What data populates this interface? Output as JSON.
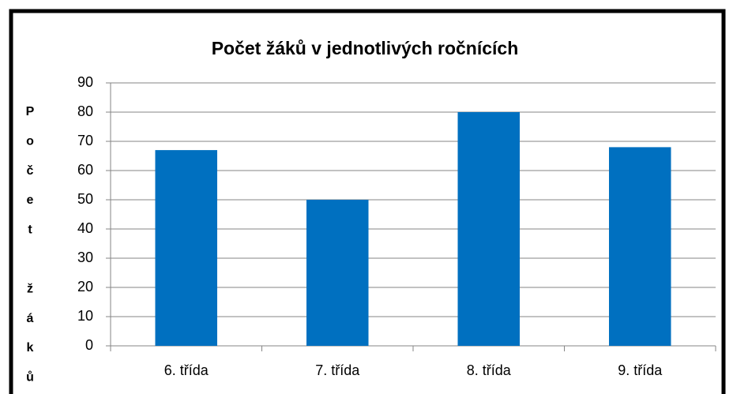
{
  "chart_data": {
    "type": "bar",
    "title": "Počet žáků v jednotlivých ročnících",
    "y_label": "Počet žáků",
    "categories": [
      "6. třída",
      "7. třída",
      "8. třída",
      "9. třída"
    ],
    "values": [
      67,
      50,
      80,
      68
    ],
    "color": "#0070c0",
    "ylim": [
      0,
      90
    ],
    "yticks": [
      0,
      10,
      20,
      30,
      40,
      50,
      60,
      70,
      80,
      90
    ],
    "grid": true
  }
}
